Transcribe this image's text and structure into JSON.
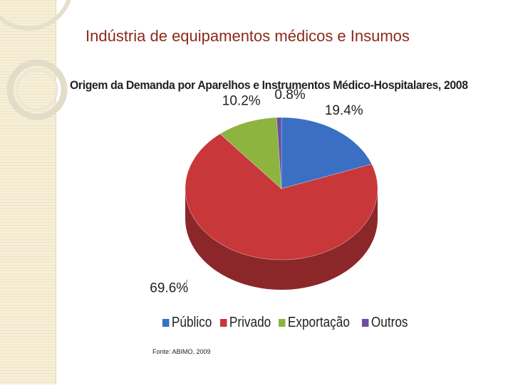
{
  "slide": {
    "title": "Indústria de equipamentos médicos e Insumos",
    "source": "Fonte: ABIMO, 2009"
  },
  "chart_data": {
    "type": "pie",
    "title": "Origem da Demanda por Aparelhos e Instrumentos Médico-Hospitalares, 2008",
    "categories": [
      "Público",
      "Privado",
      "Exportação",
      "Outros"
    ],
    "values": [
      19.4,
      69.6,
      10.2,
      0.8
    ],
    "labels": [
      "19.4%",
      "69.6%",
      "10.2%",
      "0.8%"
    ],
    "colors": [
      "#3a6fc4",
      "#c8373a",
      "#8cb43e",
      "#6a4fa0"
    ],
    "legend_position": "bottom"
  }
}
